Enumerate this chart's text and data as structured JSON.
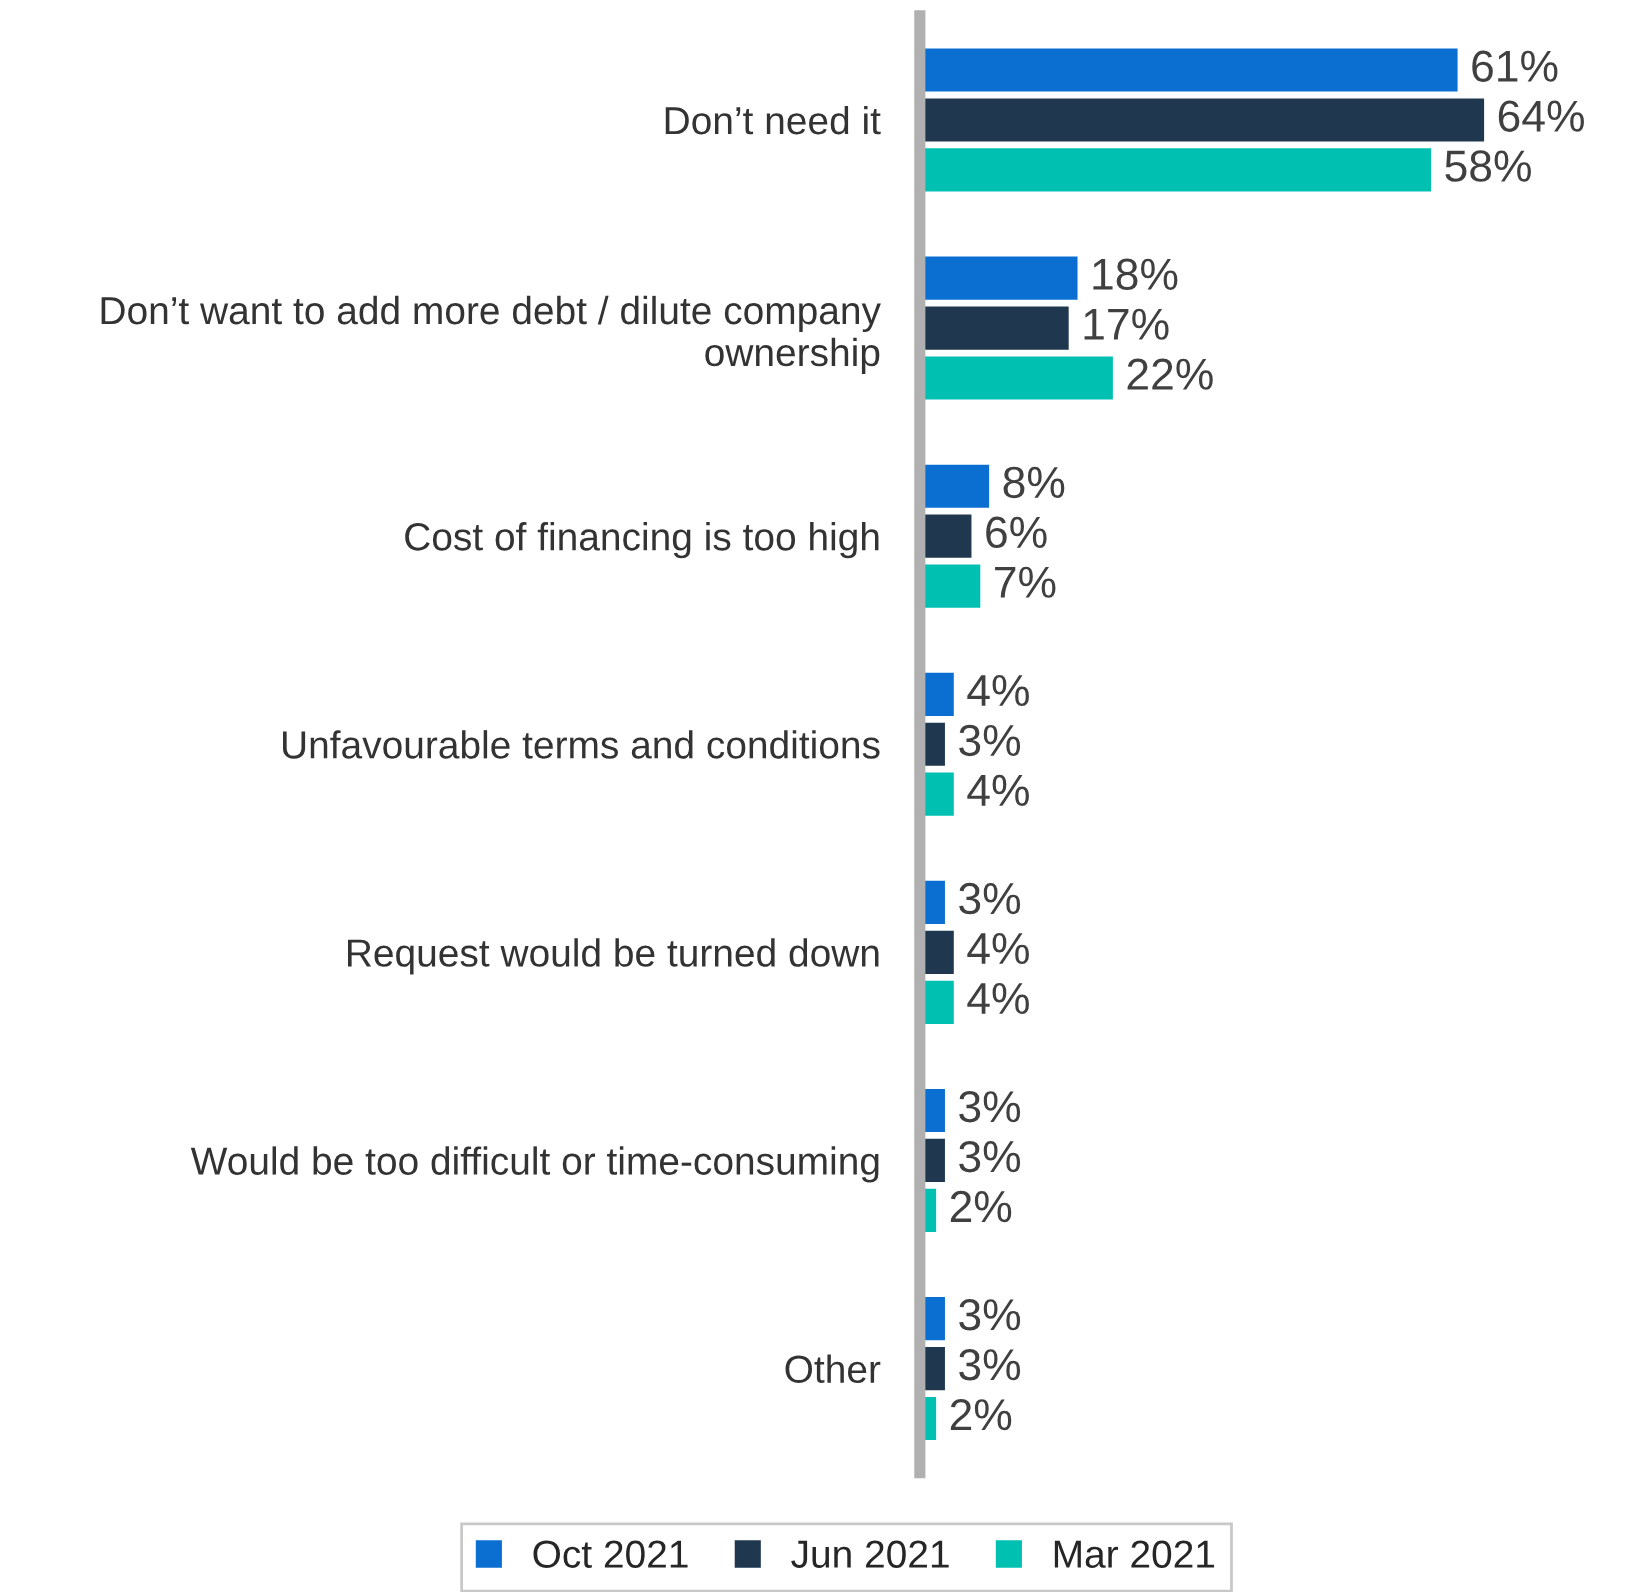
{
  "chart_data": {
    "type": "bar",
    "orientation": "horizontal",
    "tick_labels": "y",
    "legend": "bottom",
    "grid": false,
    "categories": [
      "Don’t need it",
      "Don’t want to add more debt / dilute company ownership",
      "Cost of financing is too high",
      "Unfavourable terms and conditions",
      "Request would be turned down",
      "Would be too difficult or time-consuming",
      "Other"
    ],
    "series": [
      {
        "name": "Oct 2021",
        "color": "#0a6fd0",
        "values": [
          61,
          18,
          8,
          4,
          3,
          3,
          3
        ],
        "value_labels": [
          "61%",
          "18%",
          "8%",
          "4%",
          "3%",
          "3%",
          "3%"
        ]
      },
      {
        "name": "Jun 2021",
        "color": "#1f3850",
        "values": [
          64,
          17,
          6,
          3,
          4,
          3,
          3
        ],
        "value_labels": [
          "64%",
          "17%",
          "6%",
          "3%",
          "4%",
          "3%",
          "3%"
        ]
      },
      {
        "name": "Mar 2021",
        "color": "#00c0b2",
        "values": [
          58,
          22,
          7,
          4,
          4,
          2,
          2
        ],
        "value_labels": [
          "58%",
          "22%",
          "7%",
          "4%",
          "4%",
          "2%",
          "2%"
        ]
      }
    ]
  }
}
